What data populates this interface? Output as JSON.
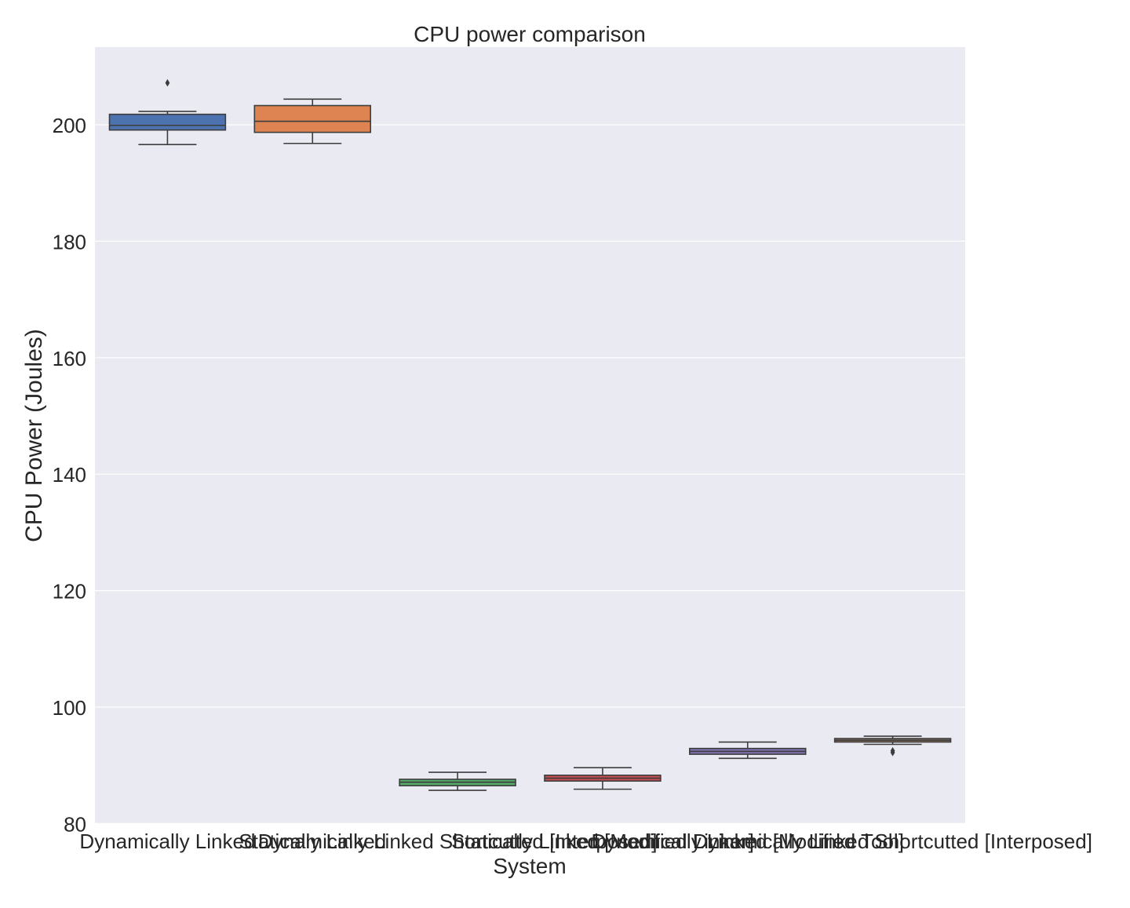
{
  "chart_data": {
    "type": "box",
    "title": "CPU power comparison",
    "xlabel": "System",
    "ylabel": "CPU Power (Joules)",
    "ylim": [
      80,
      213
    ],
    "yticks": [
      80,
      100,
      120,
      140,
      160,
      180,
      200
    ],
    "grid": true,
    "categories": [
      "Dynamically Linked",
      "Statically Linked",
      "Dynamically Linked Shortcutted [Interposed]",
      "Statically Linked [Modified Linker]",
      "Dynamically Linked [Modified Tool]",
      "Dynamically Linked Shortcutted [Interposed]"
    ],
    "colors": [
      "#4c72b0",
      "#dd8452",
      "#55a868",
      "#c44e52",
      "#8172b3",
      "#937860"
    ],
    "boxes": [
      {
        "whisker_low": 196.6,
        "q1": 199.1,
        "median": 199.9,
        "q3": 201.8,
        "whisker_high": 202.3,
        "outliers": [
          207.2
        ]
      },
      {
        "whisker_low": 196.8,
        "q1": 198.7,
        "median": 200.6,
        "q3": 203.3,
        "whisker_high": 204.4,
        "outliers": []
      },
      {
        "whisker_low": 85.7,
        "q1": 86.5,
        "median": 87.1,
        "q3": 87.6,
        "whisker_high": 88.8,
        "outliers": []
      },
      {
        "whisker_low": 85.9,
        "q1": 87.3,
        "median": 87.8,
        "q3": 88.3,
        "whisker_high": 89.6,
        "outliers": []
      },
      {
        "whisker_low": 91.2,
        "q1": 91.9,
        "median": 92.4,
        "q3": 92.9,
        "whisker_high": 94.0,
        "outliers": []
      },
      {
        "whisker_low": 93.6,
        "q1": 94.0,
        "median": 94.3,
        "q3": 94.6,
        "whisker_high": 95.0,
        "outliers": [
          92.2,
          92.5
        ]
      }
    ]
  }
}
